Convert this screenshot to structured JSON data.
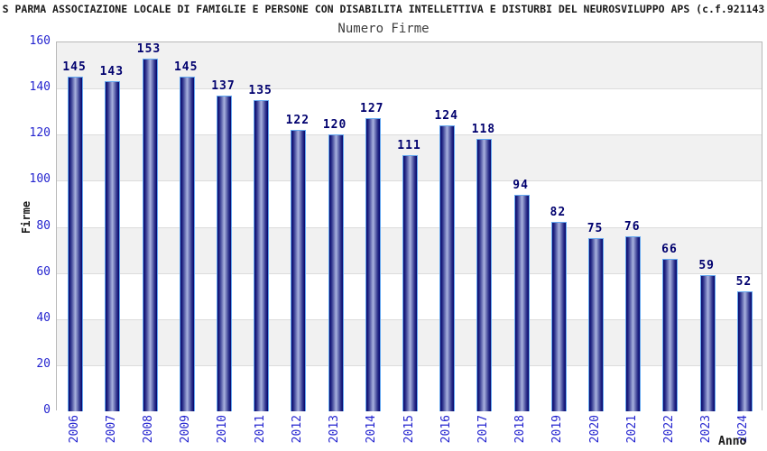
{
  "header": {
    "title": "S PARMA ASSOCIAZIONE LOCALE DI FAMIGLIE E PERSONE CON DISABILITA INTELLETTIVA E DISTURBI DEL NEUROSVILUPPO APS (c.f.921143",
    "subtitle": "Numero Firme"
  },
  "chart_data": {
    "type": "bar",
    "title": "Numero Firme",
    "xlabel": "Anno",
    "ylabel": "Firme",
    "categories": [
      "2006",
      "2007",
      "2008",
      "2009",
      "2010",
      "2011",
      "2012",
      "2013",
      "2014",
      "2015",
      "2016",
      "2017",
      "2018",
      "2019",
      "2020",
      "2021",
      "2022",
      "2023",
      "2024"
    ],
    "values": [
      145,
      143,
      153,
      145,
      137,
      135,
      122,
      120,
      127,
      111,
      124,
      118,
      94,
      82,
      75,
      76,
      66,
      59,
      52
    ],
    "ylim": [
      0,
      160
    ],
    "yticks": [
      0,
      20,
      40,
      60,
      80,
      100,
      120,
      140,
      160
    ],
    "grid": true,
    "legend": false,
    "band_pattern": "alternating horizontal bands every 20 units, gray band at top (160-140)"
  },
  "colors": {
    "title": "#1a1a1a",
    "subtitle": "#3d3d3d",
    "axis_title": "#1a1a1a",
    "tick_label": "#2424cf",
    "value_label": "#00006e",
    "bar_edge": "#04046a",
    "bar_mid": "#32378f",
    "bar_center": "#a9b2de",
    "bar_border": "#64a8f0",
    "band_gray": "#f1f1f1",
    "band_white": "#ffffff",
    "gridline": "#dcdcdc",
    "plot_border": "#b8b8b8"
  }
}
